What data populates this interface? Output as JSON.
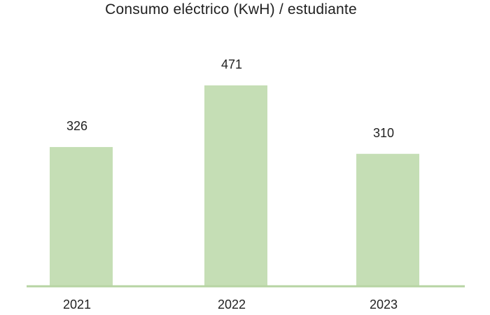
{
  "chart_data": {
    "type": "bar",
    "title": "Consumo eléctrico (KwH) / estudiante",
    "categories": [
      "2021",
      "2022",
      "2023"
    ],
    "values": [
      326,
      471,
      310
    ],
    "xlabel": "",
    "ylabel": "",
    "grid": false,
    "legend": "none",
    "bar_color": "#c5deb5",
    "baseline_color": "#b7d4a3"
  }
}
